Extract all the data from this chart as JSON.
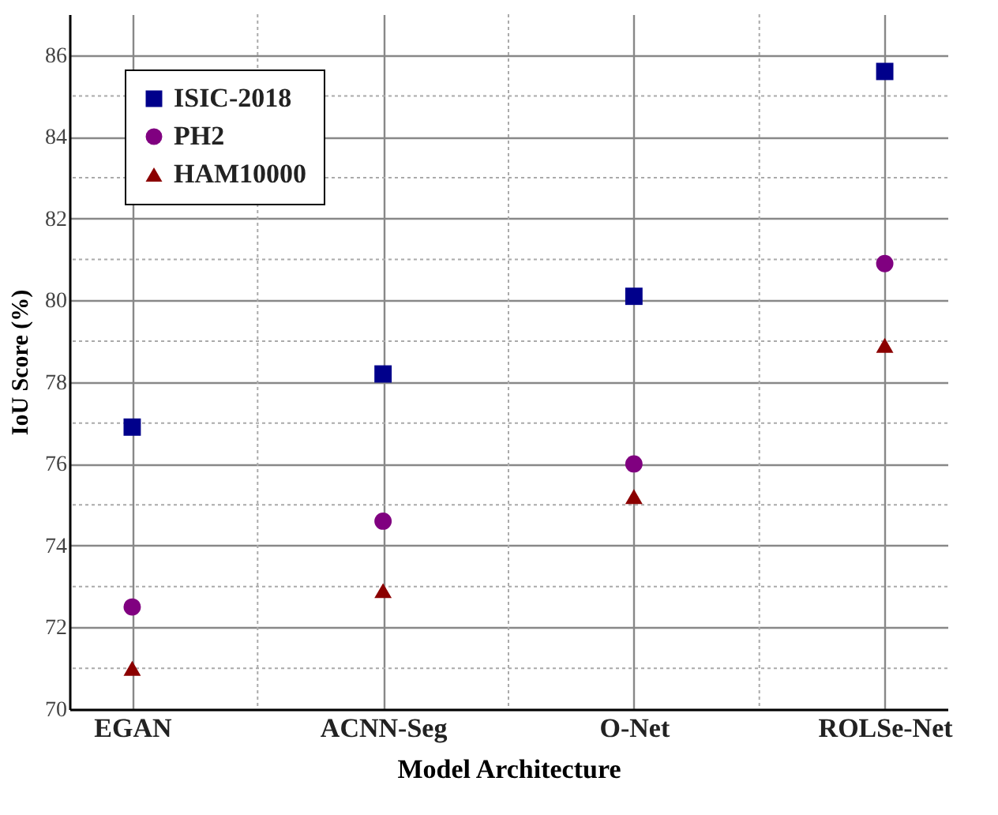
{
  "chart_data": {
    "type": "scatter",
    "categories": [
      "EGAN",
      "ACNN-Seg",
      "O-Net",
      "ROLSe-Net"
    ],
    "series": [
      {
        "name": "ISIC-2018",
        "color": "#00008b",
        "marker": "square",
        "values": [
          76.9,
          78.2,
          80.1,
          85.6
        ]
      },
      {
        "name": "PH2",
        "color": "#800080",
        "marker": "circle",
        "values": [
          72.5,
          74.6,
          76.0,
          80.9
        ]
      },
      {
        "name": "HAM10000",
        "color": "#8b0000",
        "marker": "triangle",
        "values": [
          71.0,
          72.9,
          75.2,
          78.9
        ]
      }
    ],
    "xlabel": "Model Architecture",
    "ylabel": "IoU Score (%)",
    "ylim": [
      70,
      87
    ],
    "yticks": [
      70,
      72,
      74,
      76,
      78,
      80,
      82,
      84,
      86
    ],
    "grid": true,
    "legend": "top left"
  }
}
